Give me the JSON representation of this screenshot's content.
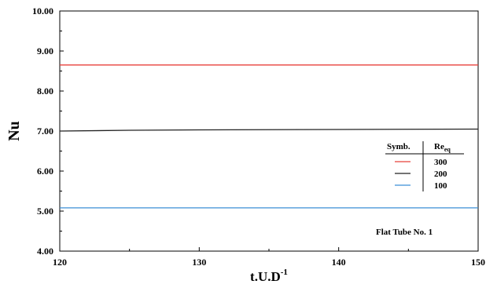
{
  "chart_data": {
    "type": "line",
    "xlabel": "t.U.D",
    "xlabel_superscript": "-1",
    "ylabel": "Nu",
    "xlim": [
      120,
      150
    ],
    "ylim": [
      4.0,
      10.0
    ],
    "x_ticks": [
      120,
      130,
      140,
      150
    ],
    "x_tick_labels": [
      "120",
      "130",
      "140",
      "150"
    ],
    "y_ticks": [
      4,
      5,
      6,
      7,
      8,
      9,
      10
    ],
    "y_tick_labels": [
      "4.00",
      "5.00",
      "6.00",
      "7.00",
      "8.00",
      "9.00",
      "10.00"
    ],
    "grid": false,
    "legend": {
      "placement": "right",
      "header_symbol": "Symb.",
      "header_value": "Re",
      "header_value_sub": "eq",
      "entries": [
        {
          "label": "300",
          "color": "#e8413b"
        },
        {
          "label": "200",
          "color": "#222222"
        },
        {
          "label": "100",
          "color": "#3b8fd6"
        }
      ]
    },
    "annotation": "Flat Tube No. 1",
    "series": [
      {
        "name": "300",
        "color": "#e8413b",
        "x": [
          120,
          130,
          140,
          150
        ],
        "y": [
          8.65,
          8.65,
          8.65,
          8.65
        ]
      },
      {
        "name": "200",
        "color": "#222222",
        "x": [
          120,
          125,
          130,
          140,
          150
        ],
        "y": [
          7.0,
          7.02,
          7.03,
          7.04,
          7.05
        ]
      },
      {
        "name": "100",
        "color": "#3b8fd6",
        "x": [
          120,
          130,
          140,
          150
        ],
        "y": [
          5.08,
          5.08,
          5.08,
          5.08
        ]
      }
    ]
  }
}
